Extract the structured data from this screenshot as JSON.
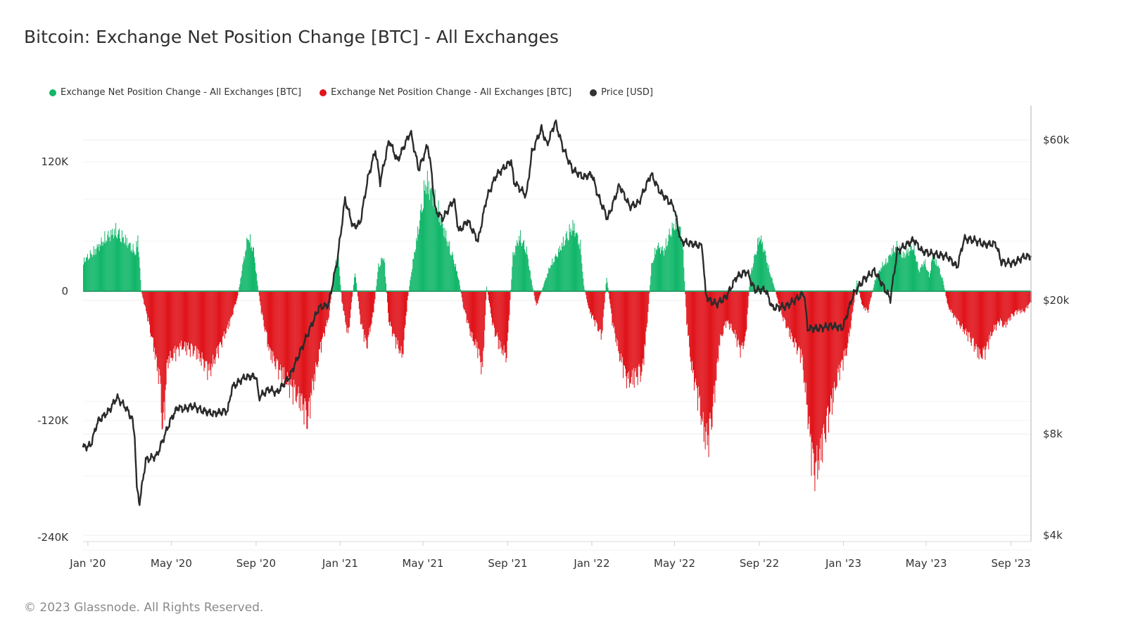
{
  "title": "Bitcoin: Exchange Net Position Change [BTC] - All Exchanges",
  "footer": "© 2023 Glassnode. All Rights Reserved.",
  "legend": [
    {
      "label": "Exchange Net Position Change - All Exchanges [BTC]",
      "color": "#12b76a"
    },
    {
      "label": "Exchange Net Position Change - All Exchanges [BTC]",
      "color": "#e0141b"
    },
    {
      "label": "Price [USD]",
      "color": "#333333"
    }
  ],
  "chart_data": {
    "type": "bar",
    "x_tick_labels": [
      "Jan '20",
      "May '20",
      "Sep '20",
      "Jan '21",
      "May '21",
      "Sep '21",
      "Jan '22",
      "May '22",
      "Sep '22",
      "Jan '23",
      "May '23",
      "Sep '23"
    ],
    "x_range": [
      "2019-12-25",
      "2023-09-30"
    ],
    "y_left": {
      "tick_labels": [
        "120K",
        "0",
        "-120K",
        "-240K"
      ],
      "tick_values": [
        120000,
        0,
        -120000,
        -240000
      ],
      "range": [
        -240000,
        175000
      ]
    },
    "y_right": {
      "tick_labels": [
        "$60k",
        "$20k",
        "$8k",
        "$4k"
      ],
      "tick_values": [
        60000,
        20000,
        8000,
        4000
      ],
      "scale": "log",
      "range": [
        4000,
        75000
      ]
    },
    "grid": true,
    "legend_position": "top-left",
    "positive_color": "#12b76a",
    "negative_color": "#e0141b",
    "price_color": "#333333",
    "net_position_keypoints": [
      [
        "2019-12-25",
        30000
      ],
      [
        "2020-01-10",
        40000
      ],
      [
        "2020-01-25",
        52000
      ],
      [
        "2020-02-10",
        60000
      ],
      [
        "2020-02-25",
        50000
      ],
      [
        "2020-03-10",
        38000
      ],
      [
        "2020-03-13",
        55000
      ],
      [
        "2020-03-18",
        0
      ],
      [
        "2020-03-25",
        -20000
      ],
      [
        "2020-04-05",
        -55000
      ],
      [
        "2020-04-15",
        -95000
      ],
      [
        "2020-04-18",
        -145000
      ],
      [
        "2020-04-25",
        -70000
      ],
      [
        "2020-05-15",
        -55000
      ],
      [
        "2020-06-05",
        -60000
      ],
      [
        "2020-06-25",
        -80000
      ],
      [
        "2020-07-10",
        -55000
      ],
      [
        "2020-07-25",
        -30000
      ],
      [
        "2020-08-05",
        -5000
      ],
      [
        "2020-08-12",
        25000
      ],
      [
        "2020-08-20",
        55000
      ],
      [
        "2020-08-28",
        40000
      ],
      [
        "2020-09-03",
        5000
      ],
      [
        "2020-09-08",
        -20000
      ],
      [
        "2020-09-20",
        -60000
      ],
      [
        "2020-10-05",
        -80000
      ],
      [
        "2020-10-20",
        -95000
      ],
      [
        "2020-11-05",
        -110000
      ],
      [
        "2020-11-15",
        -130000
      ],
      [
        "2020-11-20",
        -100000
      ],
      [
        "2020-12-05",
        -50000
      ],
      [
        "2020-12-15",
        -25000
      ],
      [
        "2020-12-22",
        15000
      ],
      [
        "2020-12-28",
        40000
      ],
      [
        "2021-01-03",
        -10000
      ],
      [
        "2021-01-12",
        -45000
      ],
      [
        "2021-01-22",
        20000
      ],
      [
        "2021-01-30",
        -30000
      ],
      [
        "2021-02-08",
        -55000
      ],
      [
        "2021-02-18",
        -20000
      ],
      [
        "2021-02-25",
        25000
      ],
      [
        "2021-03-05",
        35000
      ],
      [
        "2021-03-12",
        -30000
      ],
      [
        "2021-03-22",
        -50000
      ],
      [
        "2021-04-01",
        -65000
      ],
      [
        "2021-04-08",
        -10000
      ],
      [
        "2021-04-15",
        25000
      ],
      [
        "2021-04-20",
        45000
      ],
      [
        "2021-04-28",
        80000
      ],
      [
        "2021-05-05",
        110000
      ],
      [
        "2021-05-15",
        95000
      ],
      [
        "2021-05-25",
        75000
      ],
      [
        "2021-06-05",
        50000
      ],
      [
        "2021-06-15",
        30000
      ],
      [
        "2021-06-22",
        10000
      ],
      [
        "2021-06-28",
        -15000
      ],
      [
        "2021-07-10",
        -45000
      ],
      [
        "2021-07-20",
        -60000
      ],
      [
        "2021-07-26",
        -80000
      ],
      [
        "2021-08-01",
        5000
      ],
      [
        "2021-08-10",
        -35000
      ],
      [
        "2021-08-20",
        -55000
      ],
      [
        "2021-08-30",
        -65000
      ],
      [
        "2021-09-08",
        35000
      ],
      [
        "2021-09-18",
        55000
      ],
      [
        "2021-09-28",
        40000
      ],
      [
        "2021-10-05",
        10000
      ],
      [
        "2021-10-12",
        -15000
      ],
      [
        "2021-10-22",
        5000
      ],
      [
        "2021-11-01",
        25000
      ],
      [
        "2021-11-10",
        35000
      ],
      [
        "2021-11-25",
        55000
      ],
      [
        "2021-12-05",
        65000
      ],
      [
        "2021-12-15",
        45000
      ],
      [
        "2021-12-20",
        5000
      ],
      [
        "2021-12-28",
        -20000
      ],
      [
        "2022-01-08",
        -35000
      ],
      [
        "2022-01-15",
        -45000
      ],
      [
        "2022-01-22",
        15000
      ],
      [
        "2022-01-30",
        -30000
      ],
      [
        "2022-02-10",
        -65000
      ],
      [
        "2022-02-22",
        -90000
      ],
      [
        "2022-03-05",
        -85000
      ],
      [
        "2022-03-15",
        -80000
      ],
      [
        "2022-03-22",
        -30000
      ],
      [
        "2022-03-28",
        25000
      ],
      [
        "2022-04-05",
        45000
      ],
      [
        "2022-04-15",
        40000
      ],
      [
        "2022-04-25",
        60000
      ],
      [
        "2022-05-05",
        70000
      ],
      [
        "2022-05-12",
        50000
      ],
      [
        "2022-05-18",
        -30000
      ],
      [
        "2022-05-25",
        -75000
      ],
      [
        "2022-06-05",
        -110000
      ],
      [
        "2022-06-12",
        -140000
      ],
      [
        "2022-06-18",
        -150000
      ],
      [
        "2022-06-25",
        -120000
      ],
      [
        "2022-07-05",
        -50000
      ],
      [
        "2022-07-15",
        -30000
      ],
      [
        "2022-07-25",
        -40000
      ],
      [
        "2022-08-05",
        -60000
      ],
      [
        "2022-08-12",
        -45000
      ],
      [
        "2022-08-18",
        15000
      ],
      [
        "2022-08-25",
        35000
      ],
      [
        "2022-09-01",
        55000
      ],
      [
        "2022-09-08",
        40000
      ],
      [
        "2022-09-15",
        20000
      ],
      [
        "2022-09-22",
        5000
      ],
      [
        "2022-10-01",
        -20000
      ],
      [
        "2022-10-10",
        -35000
      ],
      [
        "2022-10-20",
        -50000
      ],
      [
        "2022-11-01",
        -65000
      ],
      [
        "2022-11-08",
        -110000
      ],
      [
        "2022-11-15",
        -160000
      ],
      [
        "2022-11-20",
        -180000
      ],
      [
        "2022-11-25",
        -170000
      ],
      [
        "2022-12-05",
        -140000
      ],
      [
        "2022-12-15",
        -110000
      ],
      [
        "2022-12-25",
        -80000
      ],
      [
        "2023-01-05",
        -60000
      ],
      [
        "2023-01-12",
        -30000
      ],
      [
        "2023-01-20",
        10000
      ],
      [
        "2023-01-28",
        -15000
      ],
      [
        "2023-02-05",
        -20000
      ],
      [
        "2023-02-15",
        10000
      ],
      [
        "2023-02-25",
        25000
      ],
      [
        "2023-03-05",
        30000
      ],
      [
        "2023-03-12",
        40000
      ],
      [
        "2023-03-20",
        45000
      ],
      [
        "2023-03-28",
        35000
      ],
      [
        "2023-04-05",
        40000
      ],
      [
        "2023-04-12",
        45000
      ],
      [
        "2023-04-20",
        20000
      ],
      [
        "2023-04-28",
        30000
      ],
      [
        "2023-05-05",
        15000
      ],
      [
        "2023-05-10",
        35000
      ],
      [
        "2023-05-18",
        25000
      ],
      [
        "2023-05-25",
        10000
      ],
      [
        "2023-06-01",
        -15000
      ],
      [
        "2023-06-10",
        -25000
      ],
      [
        "2023-06-20",
        -35000
      ],
      [
        "2023-07-01",
        -45000
      ],
      [
        "2023-07-10",
        -55000
      ],
      [
        "2023-07-18",
        -65000
      ],
      [
        "2023-07-25",
        -60000
      ],
      [
        "2023-08-05",
        -40000
      ],
      [
        "2023-08-15",
        -30000
      ],
      [
        "2023-08-22",
        -35000
      ],
      [
        "2023-09-01",
        -25000
      ],
      [
        "2023-09-10",
        -20000
      ],
      [
        "2023-09-20",
        -20000
      ],
      [
        "2023-09-30",
        -10000
      ]
    ],
    "price_usd": [
      [
        "2019-12-25",
        7300
      ],
      [
        "2020-01-05",
        7400
      ],
      [
        "2020-01-15",
        8700
      ],
      [
        "2020-02-01",
        9400
      ],
      [
        "2020-02-12",
        10300
      ],
      [
        "2020-02-25",
        9600
      ],
      [
        "2020-03-05",
        8900
      ],
      [
        "2020-03-09",
        7900
      ],
      [
        "2020-03-12",
        5500
      ],
      [
        "2020-03-16",
        5000
      ],
      [
        "2020-03-25",
        6700
      ],
      [
        "2020-04-10",
        6900
      ],
      [
        "2020-04-30",
        8800
      ],
      [
        "2020-05-10",
        9600
      ],
      [
        "2020-05-20",
        9500
      ],
      [
        "2020-06-01",
        9700
      ],
      [
        "2020-06-15",
        9400
      ],
      [
        "2020-07-01",
        9200
      ],
      [
        "2020-07-22",
        9400
      ],
      [
        "2020-07-28",
        11000
      ],
      [
        "2020-08-15",
        11800
      ],
      [
        "2020-09-01",
        11900
      ],
      [
        "2020-09-05",
        10300
      ],
      [
        "2020-09-20",
        10900
      ],
      [
        "2020-10-01",
        10600
      ],
      [
        "2020-10-20",
        11900
      ],
      [
        "2020-11-01",
        13600
      ],
      [
        "2020-11-15",
        15900
      ],
      [
        "2020-12-01",
        19000
      ],
      [
        "2020-12-15",
        19400
      ],
      [
        "2020-12-28",
        26500
      ],
      [
        "2021-01-08",
        40000
      ],
      [
        "2021-01-20",
        33000
      ],
      [
        "2021-01-30",
        34000
      ],
      [
        "2021-02-10",
        46000
      ],
      [
        "2021-02-21",
        56000
      ],
      [
        "2021-02-28",
        45000
      ],
      [
        "2021-03-13",
        60000
      ],
      [
        "2021-03-25",
        52000
      ],
      [
        "2021-04-13",
        63500
      ],
      [
        "2021-04-25",
        49000
      ],
      [
        "2021-05-08",
        58000
      ],
      [
        "2021-05-13",
        49000
      ],
      [
        "2021-05-19",
        37000
      ],
      [
        "2021-05-30",
        35000
      ],
      [
        "2021-06-15",
        40000
      ],
      [
        "2021-06-22",
        32000
      ],
      [
        "2021-07-05",
        34500
      ],
      [
        "2021-07-20",
        30000
      ],
      [
        "2021-08-01",
        40000
      ],
      [
        "2021-08-15",
        47000
      ],
      [
        "2021-09-06",
        52000
      ],
      [
        "2021-09-10",
        45000
      ],
      [
        "2021-09-28",
        41000
      ],
      [
        "2021-10-06",
        55000
      ],
      [
        "2021-10-20",
        65000
      ],
      [
        "2021-10-28",
        58000
      ],
      [
        "2021-11-09",
        68000
      ],
      [
        "2021-11-20",
        57000
      ],
      [
        "2021-12-04",
        49000
      ],
      [
        "2021-12-20",
        46500
      ],
      [
        "2022-01-01",
        47500
      ],
      [
        "2022-01-10",
        41000
      ],
      [
        "2022-01-24",
        35000
      ],
      [
        "2022-02-10",
        44000
      ],
      [
        "2022-02-25",
        38000
      ],
      [
        "2022-03-10",
        39000
      ],
      [
        "2022-03-28",
        47500
      ],
      [
        "2022-04-10",
        42000
      ],
      [
        "2022-04-30",
        38000
      ],
      [
        "2022-05-10",
        30000
      ],
      [
        "2022-05-25",
        29500
      ],
      [
        "2022-06-10",
        29000
      ],
      [
        "2022-06-15",
        21000
      ],
      [
        "2022-06-20",
        20000
      ],
      [
        "2022-07-01",
        19500
      ],
      [
        "2022-07-15",
        20500
      ],
      [
        "2022-07-30",
        23500
      ],
      [
        "2022-08-14",
        24400
      ],
      [
        "2022-08-25",
        21500
      ],
      [
        "2022-09-10",
        21500
      ],
      [
        "2022-09-20",
        19000
      ],
      [
        "2022-10-10",
        19200
      ],
      [
        "2022-11-05",
        21000
      ],
      [
        "2022-11-10",
        16500
      ],
      [
        "2022-11-25",
        16500
      ],
      [
        "2022-12-15",
        16800
      ],
      [
        "2022-12-31",
        16550
      ],
      [
        "2023-01-15",
        20800
      ],
      [
        "2023-01-30",
        23000
      ],
      [
        "2023-02-15",
        24500
      ],
      [
        "2023-03-10",
        20200
      ],
      [
        "2023-03-20",
        28000
      ],
      [
        "2023-04-13",
        30300
      ],
      [
        "2023-04-25",
        28000
      ],
      [
        "2023-05-10",
        27500
      ],
      [
        "2023-06-01",
        27000
      ],
      [
        "2023-06-15",
        25100
      ],
      [
        "2023-06-25",
        30500
      ],
      [
        "2023-07-10",
        30200
      ],
      [
        "2023-07-25",
        29300
      ],
      [
        "2023-08-10",
        29500
      ],
      [
        "2023-08-18",
        26000
      ],
      [
        "2023-09-05",
        25800
      ],
      [
        "2023-09-20",
        27000
      ],
      [
        "2023-09-30",
        27000
      ]
    ]
  }
}
